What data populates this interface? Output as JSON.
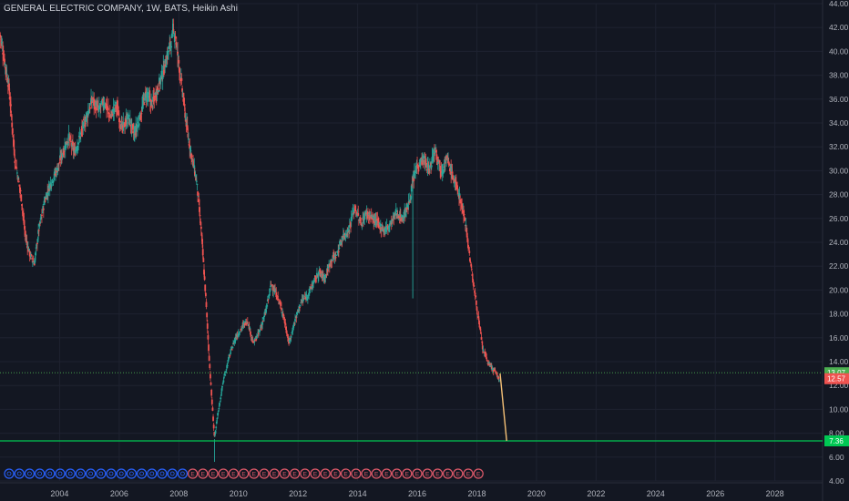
{
  "header": {
    "title": "GENERAL ELECTRIC COMPANY, 1W, BATS, Heikin Ashi"
  },
  "colors": {
    "bg": "#131722",
    "grid": "#1e2230",
    "up": "#26a69a",
    "down": "#ef5350",
    "level": "#00c853",
    "dotted": "#4caf50",
    "projection": "#f6c177",
    "div_marker": "#2962ff",
    "earn_marker": "#e05a6a"
  },
  "price_tags": [
    {
      "label": "13.07",
      "value": 13.07,
      "color": "#4caf50"
    },
    {
      "label": "12.57",
      "value": 12.57,
      "color": "#ef5350"
    },
    {
      "label": "7.36",
      "value": 7.36,
      "color": "#00c853"
    }
  ],
  "chart_data": {
    "type": "candlestick",
    "title": "GENERAL ELECTRIC COMPANY, 1W, BATS, Heikin Ashi",
    "ylim": [
      4,
      44
    ],
    "xlim": [
      2002.0,
      2029.6
    ],
    "yticks": [
      "4.00",
      "6.00",
      "8.00",
      "10.00",
      "12.00",
      "14.00",
      "16.00",
      "18.00",
      "20.00",
      "22.00",
      "24.00",
      "26.00",
      "28.00",
      "30.00",
      "32.00",
      "34.00",
      "36.00",
      "38.00",
      "40.00",
      "42.00",
      "44.00"
    ],
    "xticks": [
      "2004",
      "2006",
      "2008",
      "2010",
      "2012",
      "2014",
      "2016",
      "2018",
      "2020",
      "2022",
      "2024",
      "2026",
      "2028"
    ],
    "price_path": [
      [
        2002.0,
        41.5
      ],
      [
        2002.3,
        37.0
      ],
      [
        2002.5,
        31.0
      ],
      [
        2002.7,
        28.0
      ],
      [
        2002.85,
        24.5
      ],
      [
        2003.0,
        23.0
      ],
      [
        2003.15,
        22.2
      ],
      [
        2003.3,
        25.0
      ],
      [
        2003.5,
        27.5
      ],
      [
        2003.7,
        29.0
      ],
      [
        2003.9,
        30.0
      ],
      [
        2004.1,
        31.5
      ],
      [
        2004.3,
        32.8
      ],
      [
        2004.5,
        31.5
      ],
      [
        2004.7,
        33.0
      ],
      [
        2004.9,
        34.5
      ],
      [
        2005.1,
        36.0
      ],
      [
        2005.3,
        35.0
      ],
      [
        2005.5,
        35.8
      ],
      [
        2005.7,
        34.5
      ],
      [
        2005.9,
        35.5
      ],
      [
        2006.1,
        33.5
      ],
      [
        2006.3,
        34.5
      ],
      [
        2006.5,
        33.0
      ],
      [
        2006.7,
        34.5
      ],
      [
        2006.9,
        36.5
      ],
      [
        2007.1,
        35.5
      ],
      [
        2007.3,
        37.0
      ],
      [
        2007.5,
        38.5
      ],
      [
        2007.7,
        40.5
      ],
      [
        2007.85,
        41.8
      ],
      [
        2008.0,
        39.0
      ],
      [
        2008.15,
        36.0
      ],
      [
        2008.3,
        33.0
      ],
      [
        2008.45,
        31.0
      ],
      [
        2008.6,
        29.0
      ],
      [
        2008.75,
        25.0
      ],
      [
        2008.9,
        19.5
      ],
      [
        2009.0,
        15.0
      ],
      [
        2009.1,
        11.0
      ],
      [
        2009.2,
        7.5
      ],
      [
        2009.3,
        9.5
      ],
      [
        2009.5,
        12.5
      ],
      [
        2009.7,
        14.5
      ],
      [
        2009.9,
        16.0
      ],
      [
        2010.1,
        16.8
      ],
      [
        2010.3,
        17.5
      ],
      [
        2010.5,
        15.5
      ],
      [
        2010.7,
        16.5
      ],
      [
        2010.9,
        18.0
      ],
      [
        2011.1,
        20.5
      ],
      [
        2011.3,
        19.5
      ],
      [
        2011.5,
        18.0
      ],
      [
        2011.7,
        15.5
      ],
      [
        2011.9,
        17.5
      ],
      [
        2012.1,
        19.0
      ],
      [
        2012.3,
        19.5
      ],
      [
        2012.5,
        20.5
      ],
      [
        2012.7,
        21.5
      ],
      [
        2012.9,
        21.0
      ],
      [
        2013.1,
        22.5
      ],
      [
        2013.3,
        23.0
      ],
      [
        2013.5,
        24.5
      ],
      [
        2013.7,
        25.0
      ],
      [
        2013.9,
        27.0
      ],
      [
        2014.1,
        25.5
      ],
      [
        2014.3,
        26.5
      ],
      [
        2014.5,
        26.0
      ],
      [
        2014.7,
        25.5
      ],
      [
        2014.9,
        25.0
      ],
      [
        2015.1,
        25.5
      ],
      [
        2015.3,
        26.5
      ],
      [
        2015.5,
        26.0
      ],
      [
        2015.7,
        27.0
      ],
      [
        2015.85,
        29.0
      ],
      [
        2016.0,
        30.5
      ],
      [
        2016.2,
        31.0
      ],
      [
        2016.4,
        30.0
      ],
      [
        2016.6,
        32.0
      ],
      [
        2016.8,
        30.0
      ],
      [
        2017.0,
        31.0
      ],
      [
        2017.2,
        29.5
      ],
      [
        2017.4,
        28.0
      ],
      [
        2017.6,
        26.0
      ],
      [
        2017.8,
        22.0
      ],
      [
        2018.0,
        18.5
      ],
      [
        2018.2,
        15.0
      ],
      [
        2018.4,
        13.8
      ],
      [
        2018.6,
        13.2
      ],
      [
        2018.75,
        12.5
      ]
    ],
    "projection_line": {
      "from": [
        2018.78,
        13.0
      ],
      "to": [
        2019.0,
        7.36
      ]
    },
    "horizontal_levels": [
      {
        "value": 7.36,
        "style": "solid"
      },
      {
        "value": 13.07,
        "style": "dotted"
      }
    ],
    "event_markers": {
      "dividends_count": 18,
      "earnings_count": 29,
      "earnings_label": "E"
    }
  }
}
